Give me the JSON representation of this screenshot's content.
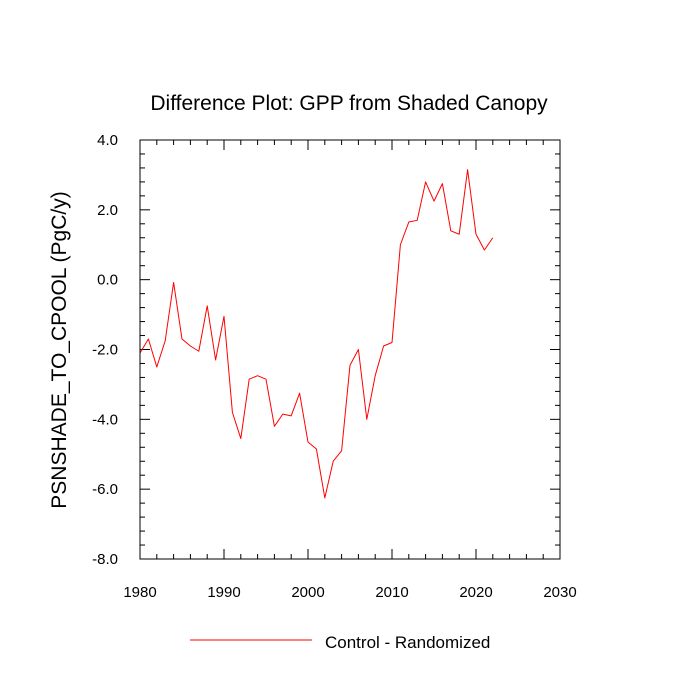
{
  "chart_data": {
    "type": "line",
    "title": "Difference Plot: GPP from Shaded Canopy",
    "xlabel": "",
    "ylabel": "PSNSHADE_TO_CPOOL  (PgC/y)",
    "xlim": [
      1980,
      2030
    ],
    "ylim": [
      -8.0,
      4.0
    ],
    "x_ticks": [
      "1980",
      "1990",
      "2000",
      "2010",
      "2020",
      "2030"
    ],
    "y_ticks": [
      "4.0",
      "2.0",
      "0.0",
      "-2.0",
      "-4.0",
      "-6.0",
      "-8.0"
    ],
    "grid": false,
    "legend": "bottom",
    "series": [
      {
        "name": "Control - Randomized",
        "color": "#ff0000",
        "x": [
          1980,
          1981,
          1982,
          1983,
          1984,
          1985,
          1986,
          1987,
          1988,
          1989,
          1990,
          1991,
          1992,
          1993,
          1994,
          1995,
          1996,
          1997,
          1998,
          1999,
          2000,
          2001,
          2002,
          2003,
          2004,
          2005,
          2006,
          2007,
          2008,
          2009,
          2010,
          2011,
          2012,
          2013,
          2014,
          2015,
          2016,
          2017,
          2018,
          2019,
          2020,
          2021,
          2022
        ],
        "values": [
          -2.1,
          -1.7,
          -2.5,
          -1.75,
          -0.08,
          -1.7,
          -1.9,
          -2.05,
          -0.75,
          -2.3,
          -1.05,
          -3.8,
          -4.55,
          -2.85,
          -2.75,
          -2.85,
          -4.2,
          -3.85,
          -3.9,
          -3.25,
          -4.65,
          -4.85,
          -6.25,
          -5.2,
          -4.9,
          -2.45,
          -2.0,
          -4.0,
          -2.75,
          -1.9,
          -1.8,
          1.0,
          1.65,
          1.7,
          2.8,
          2.25,
          2.75,
          1.4,
          1.3,
          3.15,
          1.3,
          0.85,
          1.2
        ]
      }
    ]
  }
}
